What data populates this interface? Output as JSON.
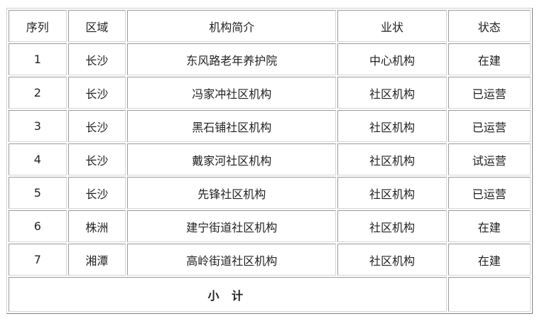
{
  "headers": [
    "序列",
    "区域",
    "机构简介",
    "业状",
    "状态"
  ],
  "rows": [
    [
      "1",
      "长沙",
      "东风路老年养护院",
      "中心机构",
      "在建"
    ],
    [
      "2",
      "长沙",
      "冯家冲社区机构",
      "社区机构",
      "已运营"
    ],
    [
      "3",
      "长沙",
      "黑石铺社区机构",
      "社区机构",
      "已运营"
    ],
    [
      "4",
      "长沙",
      "戴家河社区机构",
      "社区机构",
      "试运营"
    ],
    [
      "5",
      "长沙",
      "先锋社区机构",
      "社区机构",
      "已运营"
    ],
    [
      "6",
      "株洲",
      "建宁街道社区机构",
      "社区机构",
      "在建"
    ],
    [
      "7",
      "湘潭",
      "高岭街道社区机构",
      "社区机构",
      "在建"
    ]
  ],
  "total_label": "小 计",
  "total_value": ""
}
